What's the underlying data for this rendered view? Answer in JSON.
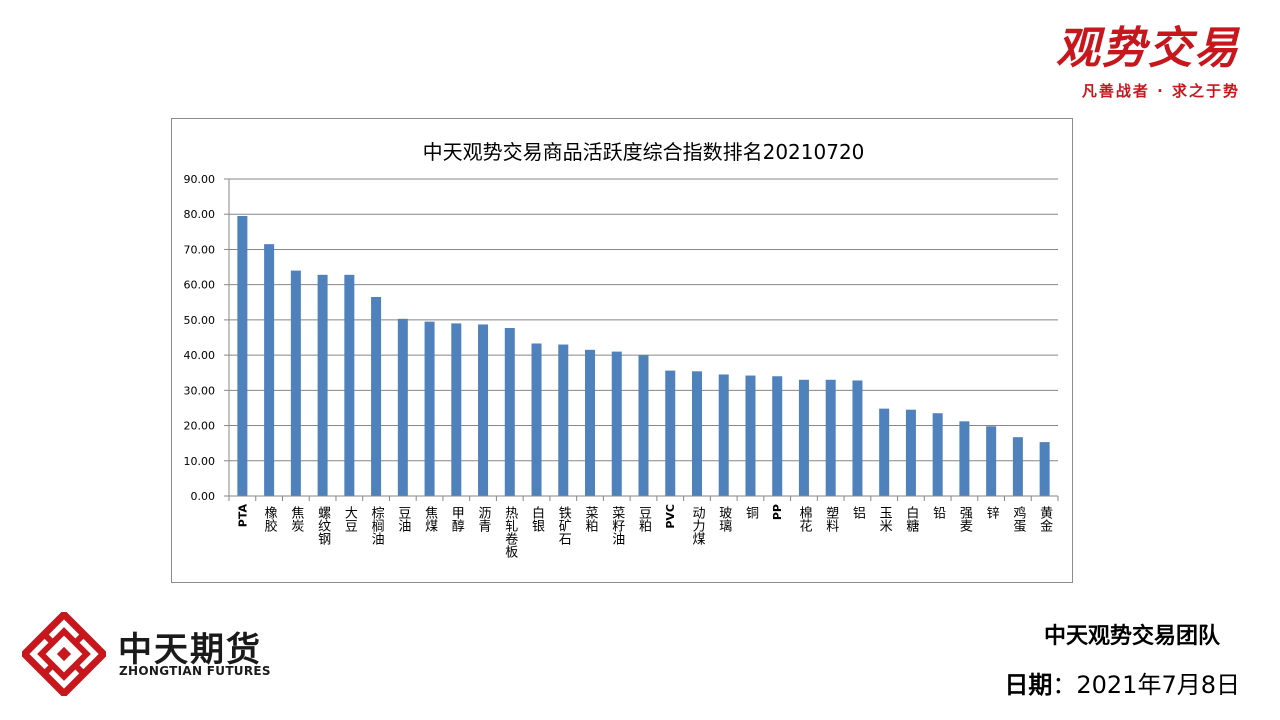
{
  "brand": {
    "name": "观势交易",
    "slogan": "凡善战者 · 求之于势",
    "color": "#c8161d"
  },
  "company": {
    "name_cn": "中天期货",
    "name_en": "ZHONGTIAN FUTURES",
    "logo_icon": "zhongtian-knot-logo-icon"
  },
  "footer": {
    "team": "中天观势交易团队",
    "date_label": "日期",
    "date_sep": "：",
    "date_value": "2021年7月8日"
  },
  "chart_data": {
    "type": "bar",
    "title": "中天观势交易商品活跃度综合指数排名20210720",
    "categories": [
      "PTA",
      "橡胶",
      "焦炭",
      "螺纹钢",
      "大豆",
      "棕榈油",
      "豆油",
      "焦煤",
      "甲醇",
      "沥青",
      "热轧卷板",
      "白银",
      "铁矿石",
      "菜粕",
      "菜籽油",
      "豆粕",
      "PVC",
      "动力煤",
      "玻璃",
      "铜",
      "PP",
      "棉花",
      "塑料",
      "铝",
      "玉米",
      "白糖",
      "铅",
      "强麦",
      "锌",
      "鸡蛋",
      "黄金"
    ],
    "values": [
      79.5,
      71.5,
      64.0,
      62.8,
      62.8,
      56.5,
      50.3,
      49.5,
      49.0,
      48.7,
      47.7,
      43.3,
      43.0,
      41.5,
      41.0,
      40.0,
      35.6,
      35.4,
      34.5,
      34.2,
      34.0,
      33.0,
      33.0,
      32.8,
      24.8,
      24.5,
      23.5,
      21.2,
      19.8,
      16.7,
      15.3
    ],
    "yticks": [
      "0.00",
      "10.00",
      "20.00",
      "30.00",
      "40.00",
      "50.00",
      "60.00",
      "70.00",
      "80.00",
      "90.00"
    ],
    "ylim": [
      0,
      90
    ],
    "grid": true,
    "bar_color": "#4f81bd",
    "xlabel": "",
    "ylabel": ""
  }
}
